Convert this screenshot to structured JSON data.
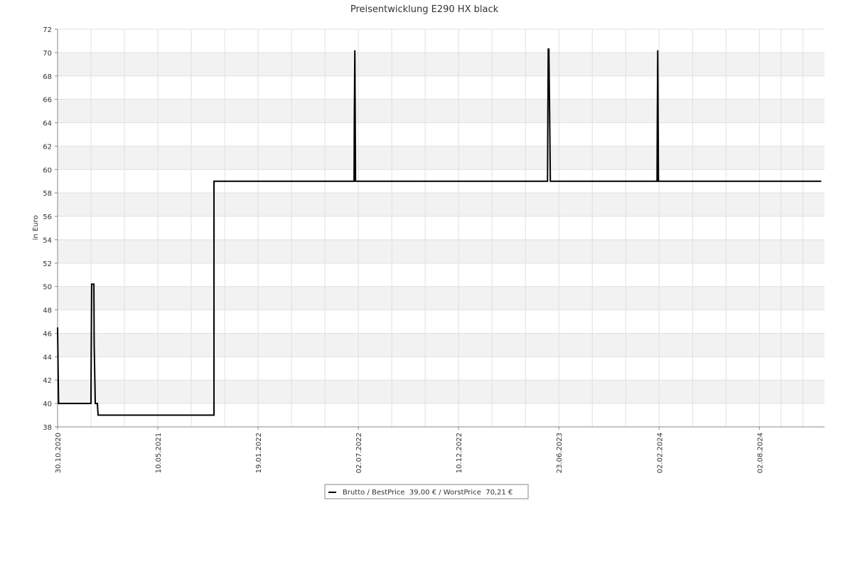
{
  "chart_data": {
    "type": "line",
    "title": "Preisentwicklung E290 HX black",
    "y_label": "in Euro",
    "xlim": [
      0,
      765
    ],
    "ylim": [
      38,
      72
    ],
    "xticks": [
      {
        "value": 0,
        "label": "30.10.2020"
      },
      {
        "value": 100,
        "label": "10.05.2021"
      },
      {
        "value": 200,
        "label": "19.01.2022"
      },
      {
        "value": 300,
        "label": "02.07.2022"
      },
      {
        "value": 400,
        "label": "10.12.2022"
      },
      {
        "value": 500,
        "label": "23.06.2023"
      },
      {
        "value": 600,
        "label": "02.02.2024"
      },
      {
        "value": 700,
        "label": "02.08.2024"
      }
    ],
    "yticks": [
      38,
      40,
      42,
      44,
      46,
      48,
      50,
      52,
      54,
      56,
      58,
      60,
      62,
      64,
      66,
      68,
      70,
      72
    ],
    "grid": true,
    "legend": "bottom",
    "series": [
      {
        "name": "Brutto / BestPrice  39,00 € / WorstPrice  70,21 €",
        "color": "#000000",
        "x": [
          0,
          0.5,
          1,
          33.3,
          33.6,
          34,
          36.2,
          36.5,
          37.6,
          39.7,
          40.4,
          156,
          156,
          295.7,
          296,
          296.5,
          297.2,
          488.7,
          489,
          489.4,
          490,
          490.8,
          491.5,
          597.9,
          598.2,
          598.6,
          599.3,
          761.7
        ],
        "values": [
          46.5,
          43.2,
          40,
          40,
          45.1,
          50.2,
          50.2,
          45.1,
          40,
          40,
          39,
          39,
          59,
          59,
          64.6,
          70.2,
          59,
          59,
          64.6,
          70.3,
          70.3,
          64.6,
          59,
          59,
          64.6,
          70.2,
          59,
          59
        ]
      }
    ]
  }
}
